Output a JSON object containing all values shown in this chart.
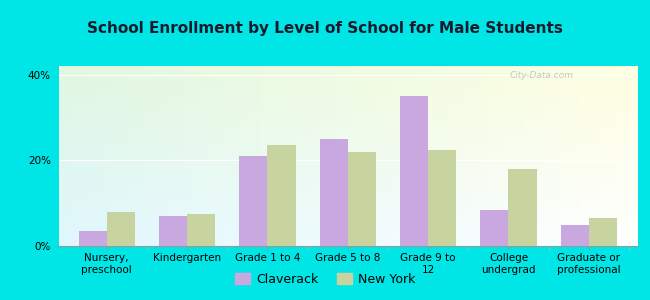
{
  "title": "School Enrollment by Level of School for Male Students",
  "categories": [
    "Nursery,\npreschool",
    "Kindergarten",
    "Grade 1 to 4",
    "Grade 5 to 8",
    "Grade 9 to\n12",
    "College\nundergrad",
    "Graduate or\nprofessional"
  ],
  "claverack": [
    3.5,
    7.0,
    21.0,
    25.0,
    35.0,
    8.5,
    5.0
  ],
  "new_york": [
    8.0,
    7.5,
    23.5,
    22.0,
    22.5,
    18.0,
    6.5
  ],
  "claverack_color": "#c9a8e0",
  "new_york_color": "#c8d4a0",
  "background_color": "#00e5e5",
  "plot_bg_color": "#e8f5e5",
  "ylim": [
    0,
    42
  ],
  "yticks": [
    0,
    20,
    40
  ],
  "ytick_labels": [
    "0%",
    "20%",
    "40%"
  ],
  "legend_labels": [
    "Claverack",
    "New York"
  ],
  "bar_width": 0.35,
  "title_fontsize": 11,
  "tick_fontsize": 7.5,
  "legend_fontsize": 9,
  "watermark": "City-Data.com"
}
